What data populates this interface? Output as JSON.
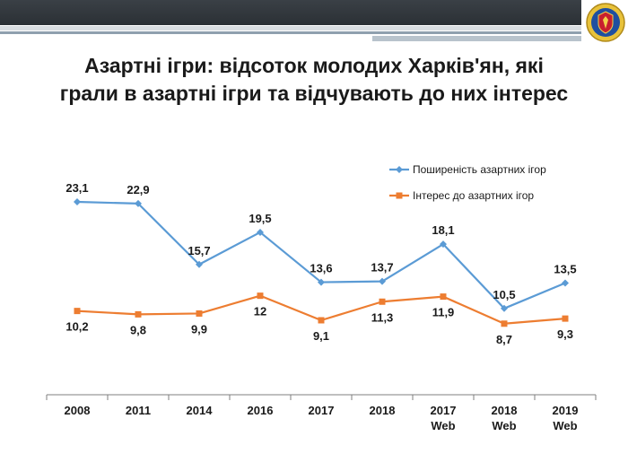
{
  "title_line1": "Азартні ігри: відсоток молодих Харків'ян, які",
  "title_line2": "грали в азартні ігри та відчувають до них інтерес",
  "colors": {
    "series1": "#5b9bd5",
    "series2": "#ed7d31",
    "axis": "#7f7f7f",
    "banner": "#2b3035"
  },
  "logo": {
    "icon": "emblem-icon"
  },
  "chart_data": {
    "type": "line",
    "title": "Азартні ігри: відсоток молодих Харків'ян, які грали в азартні ігри та відчувають до них інтерес",
    "categories": [
      [
        "2008"
      ],
      [
        "2011"
      ],
      [
        "2014"
      ],
      [
        "2016"
      ],
      [
        "2017"
      ],
      [
        "2018"
      ],
      [
        "2017",
        "Web"
      ],
      [
        "2018",
        "Web"
      ],
      [
        "2019",
        "Web"
      ]
    ],
    "ylim": [
      0,
      30
    ],
    "grid": false,
    "legend_position": "top-right",
    "series": [
      {
        "name": "Поширеність азартних ігор",
        "marker": "diamond",
        "values": [
          23.1,
          22.9,
          15.7,
          19.5,
          13.6,
          13.7,
          18.1,
          10.5,
          13.5
        ],
        "labels": [
          "23,1",
          "22,9",
          "15,7",
          "19,5",
          "13,6",
          "13,7",
          "18,1",
          "10,5",
          "13,5"
        ]
      },
      {
        "name": "Інтерес до азартних ігор",
        "marker": "square",
        "values": [
          10.2,
          9.8,
          9.9,
          12,
          9.1,
          11.3,
          11.9,
          8.7,
          9.3
        ],
        "labels": [
          "10,2",
          "9,8",
          "9,9",
          "12",
          "9,1",
          "11,3",
          "11,9",
          "8,7",
          "9,3"
        ]
      }
    ]
  }
}
